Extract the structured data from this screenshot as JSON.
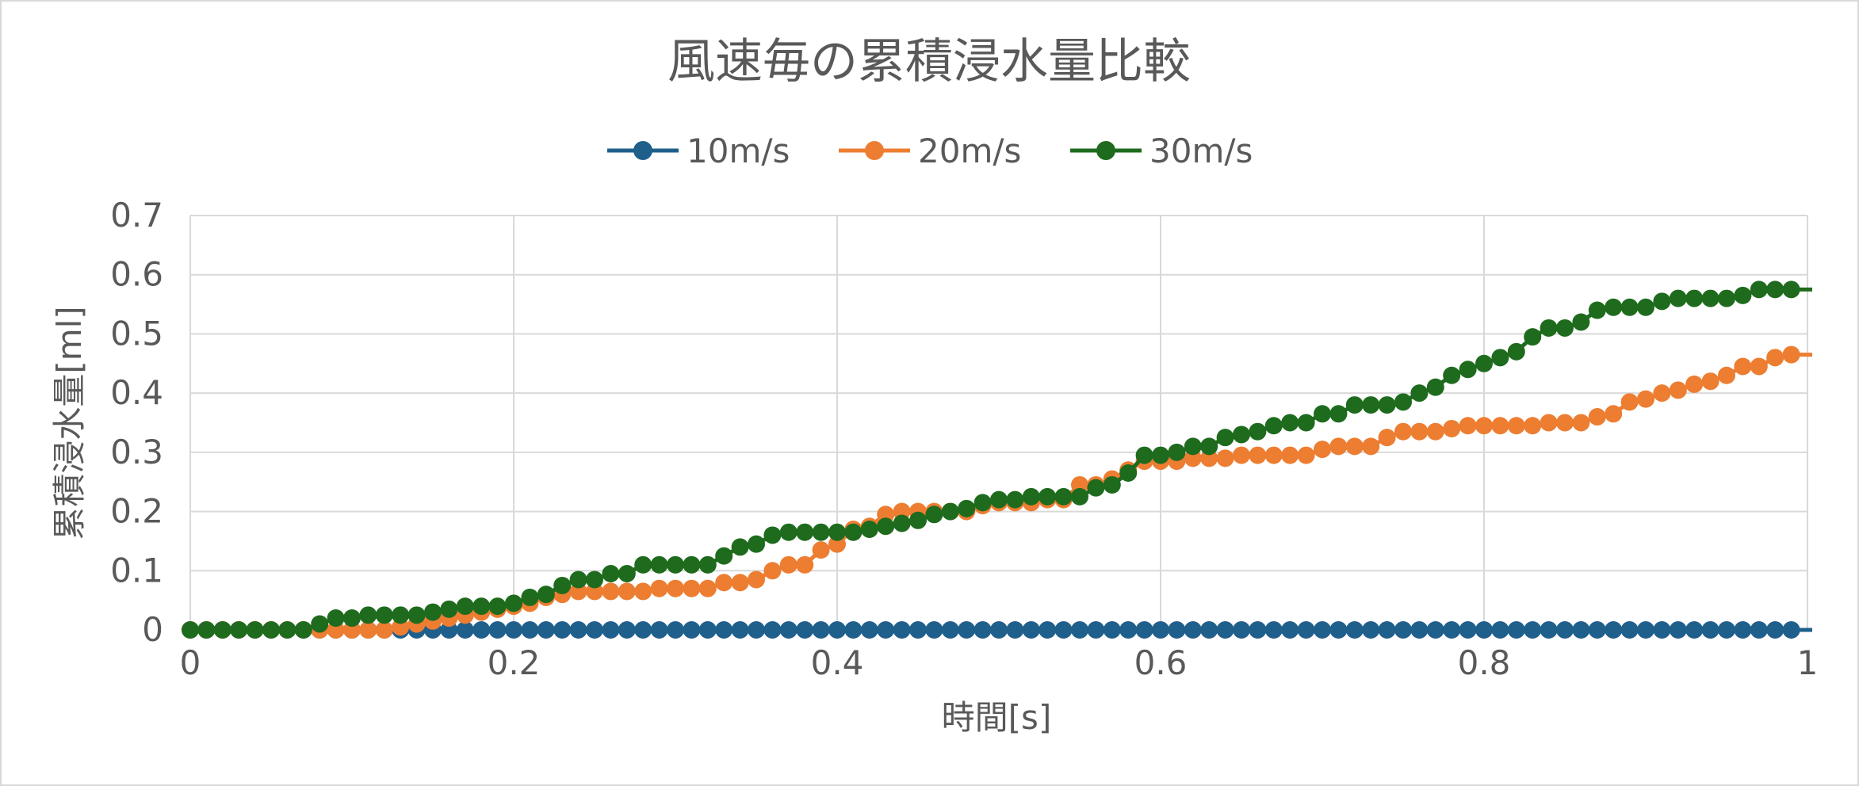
{
  "chart_data": {
    "type": "line",
    "title": "風速毎の累積浸水量比較",
    "xlabel": "時間[s]",
    "ylabel": "累積浸水量[ml]",
    "xlim": [
      0,
      1
    ],
    "ylim": [
      0,
      0.7
    ],
    "x_ticks": [
      "0",
      "0.2",
      "0.4",
      "0.6",
      "0.8",
      "1"
    ],
    "y_ticks": [
      "0",
      "0.1",
      "0.2",
      "0.3",
      "0.4",
      "0.5",
      "0.6",
      "0.7"
    ],
    "grid": true,
    "legend_position": "top",
    "x": [
      0,
      0.01,
      0.02,
      0.03,
      0.04,
      0.05,
      0.06,
      0.07,
      0.08,
      0.09,
      0.1,
      0.11,
      0.12,
      0.13,
      0.14,
      0.15,
      0.16,
      0.17,
      0.18,
      0.19,
      0.2,
      0.21,
      0.22,
      0.23,
      0.24,
      0.25,
      0.26,
      0.27,
      0.28,
      0.29,
      0.3,
      0.31,
      0.32,
      0.33,
      0.34,
      0.35,
      0.36,
      0.37,
      0.38,
      0.39,
      0.4,
      0.41,
      0.42,
      0.43,
      0.44,
      0.45,
      0.46,
      0.47,
      0.48,
      0.49,
      0.5,
      0.51,
      0.52,
      0.53,
      0.54,
      0.55,
      0.56,
      0.57,
      0.58,
      0.59,
      0.6,
      0.61,
      0.62,
      0.63,
      0.64,
      0.65,
      0.66,
      0.67,
      0.68,
      0.69,
      0.7,
      0.71,
      0.72,
      0.73,
      0.74,
      0.75,
      0.76,
      0.77,
      0.78,
      0.79,
      0.8,
      0.81,
      0.82,
      0.83,
      0.84,
      0.85,
      0.86,
      0.87,
      0.88,
      0.89,
      0.9,
      0.91,
      0.92,
      0.93,
      0.94,
      0.95,
      0.96,
      0.97,
      0.98,
      0.99
    ],
    "series": [
      {
        "name": "10m/s",
        "color": "#1f5f8b",
        "values": [
          0,
          0,
          0,
          0,
          0,
          0,
          0,
          0,
          0,
          0,
          0,
          0,
          0,
          0,
          0,
          0,
          0,
          0,
          0,
          0,
          0,
          0,
          0,
          0,
          0,
          0,
          0,
          0,
          0,
          0,
          0,
          0,
          0,
          0,
          0,
          0,
          0,
          0,
          0,
          0,
          0,
          0,
          0,
          0,
          0,
          0,
          0,
          0,
          0,
          0,
          0,
          0,
          0,
          0,
          0,
          0,
          0,
          0,
          0,
          0,
          0,
          0,
          0,
          0,
          0,
          0,
          0,
          0,
          0,
          0,
          0,
          0,
          0,
          0,
          0,
          0,
          0,
          0,
          0,
          0,
          0,
          0,
          0,
          0,
          0,
          0,
          0,
          0,
          0,
          0,
          0,
          0,
          0,
          0,
          0,
          0,
          0,
          0,
          0,
          0
        ]
      },
      {
        "name": "20m/s",
        "color": "#ed7d31",
        "values": [
          0,
          0,
          0,
          0,
          0,
          0,
          0,
          0,
          0,
          0,
          0,
          0,
          0,
          0.005,
          0.01,
          0.015,
          0.02,
          0.025,
          0.03,
          0.035,
          0.04,
          0.045,
          0.055,
          0.06,
          0.065,
          0.065,
          0.065,
          0.065,
          0.065,
          0.07,
          0.07,
          0.07,
          0.07,
          0.08,
          0.08,
          0.085,
          0.1,
          0.11,
          0.11,
          0.135,
          0.145,
          0.17,
          0.175,
          0.195,
          0.2,
          0.2,
          0.2,
          0.2,
          0.2,
          0.21,
          0.215,
          0.215,
          0.215,
          0.22,
          0.22,
          0.245,
          0.245,
          0.255,
          0.27,
          0.285,
          0.285,
          0.285,
          0.29,
          0.29,
          0.29,
          0.295,
          0.295,
          0.295,
          0.295,
          0.295,
          0.305,
          0.31,
          0.31,
          0.31,
          0.325,
          0.335,
          0.335,
          0.335,
          0.34,
          0.345,
          0.345,
          0.345,
          0.345,
          0.345,
          0.35,
          0.35,
          0.35,
          0.36,
          0.365,
          0.385,
          0.39,
          0.4,
          0.405,
          0.415,
          0.42,
          0.43,
          0.445,
          0.445,
          0.46,
          0.465
        ]
      },
      {
        "name": "30m/s",
        "color": "#1e6b1e",
        "values": [
          0,
          0,
          0,
          0,
          0,
          0,
          0,
          0,
          0.01,
          0.02,
          0.02,
          0.025,
          0.025,
          0.025,
          0.025,
          0.03,
          0.035,
          0.04,
          0.04,
          0.04,
          0.045,
          0.055,
          0.06,
          0.075,
          0.085,
          0.085,
          0.095,
          0.095,
          0.11,
          0.11,
          0.11,
          0.11,
          0.11,
          0.125,
          0.14,
          0.145,
          0.16,
          0.165,
          0.165,
          0.165,
          0.165,
          0.165,
          0.17,
          0.175,
          0.18,
          0.185,
          0.195,
          0.2,
          0.205,
          0.215,
          0.22,
          0.22,
          0.225,
          0.225,
          0.225,
          0.225,
          0.24,
          0.245,
          0.265,
          0.295,
          0.295,
          0.3,
          0.31,
          0.31,
          0.325,
          0.33,
          0.335,
          0.345,
          0.35,
          0.35,
          0.365,
          0.365,
          0.38,
          0.38,
          0.38,
          0.385,
          0.4,
          0.41,
          0.43,
          0.44,
          0.45,
          0.46,
          0.47,
          0.495,
          0.51,
          0.51,
          0.52,
          0.54,
          0.545,
          0.545,
          0.545,
          0.555,
          0.56,
          0.56,
          0.56,
          0.56,
          0.565,
          0.575,
          0.575,
          0.575
        ]
      }
    ]
  }
}
